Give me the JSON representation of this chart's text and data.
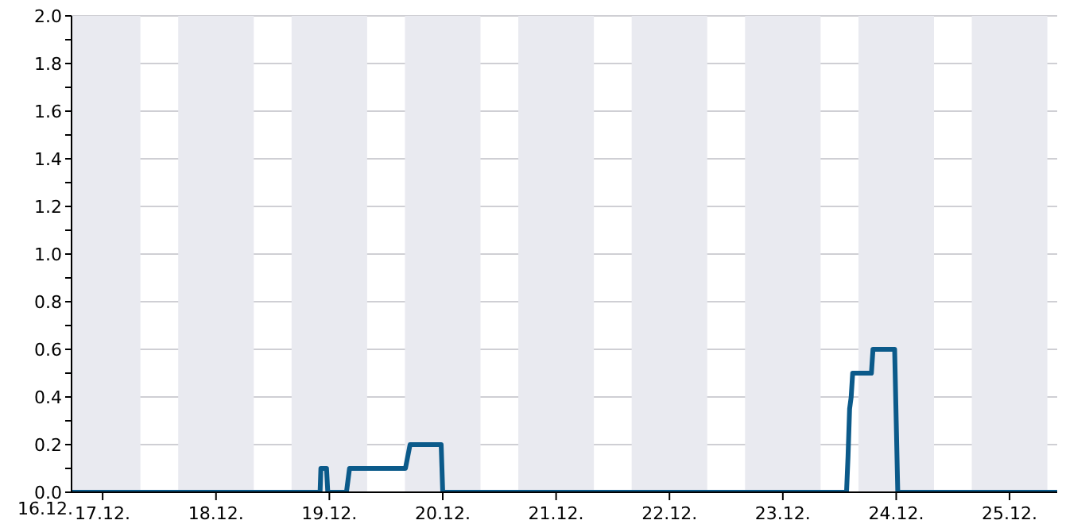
{
  "chart_data": {
    "type": "line",
    "x": [
      "--12-16T17:25",
      "--12-18T22:02",
      "--12-18T22:12",
      "--12-18T23:24",
      "--12-18T23:40",
      "--12-19T03:37",
      "--12-19T04:16",
      "--12-19T16:06",
      "--12-19T17:05",
      "--12-19T23:40",
      "--12-20T00:00",
      "--12-23T13:29",
      "--12-23T13:48",
      "--12-23T14:08",
      "--12-23T14:28",
      "--12-23T14:47",
      "--12-23T18:45",
      "--12-23T19:05",
      "--12-23T23:40",
      "--12-24T00:00",
      "--12-24T00:20",
      "--12-25T10:05"
    ],
    "series": [
      {
        "color": "#0b5a8a",
        "values": [
          0,
          0,
          0.1,
          0.1,
          0,
          0,
          0.1,
          0.1,
          0.2,
          0.2,
          0,
          0,
          0.15,
          0.35,
          0.4,
          0.5,
          0.5,
          0.6,
          0.6,
          0.3,
          0,
          0
        ]
      }
    ],
    "xlim": [
      "--12-16T17:25",
      "--12-25T10:05"
    ],
    "annotations": [
      "16.12."
    ],
    "xticks": [
      {
        "value": "--12-17",
        "label": "17.12."
      },
      {
        "value": "--12-18",
        "label": "18.12."
      },
      {
        "value": "--12-19",
        "label": "19.12."
      },
      {
        "value": "--12-20",
        "label": "20.12."
      },
      {
        "value": "--12-21",
        "label": "21.12."
      },
      {
        "value": "--12-22",
        "label": "22.12."
      },
      {
        "value": "--12-23",
        "label": "23.12."
      },
      {
        "value": "--12-24",
        "label": "24.12."
      },
      {
        "value": "--12-25",
        "label": "25.12."
      }
    ],
    "ylim": [
      0,
      2
    ],
    "yticks": [
      {
        "value": 0,
        "label": "0.0"
      },
      {
        "value": 0.1,
        "label": null
      },
      {
        "value": 0.2,
        "label": "0.2"
      },
      {
        "value": 0.3,
        "label": null
      },
      {
        "value": 0.4,
        "label": "0.4"
      },
      {
        "value": 0.5,
        "label": null
      },
      {
        "value": 0.6,
        "label": "0.6"
      },
      {
        "value": 0.7,
        "label": null
      },
      {
        "value": 0.8,
        "label": "0.8"
      },
      {
        "value": 0.9,
        "label": null
      },
      {
        "value": 1,
        "label": "1.0"
      },
      {
        "value": 1.1,
        "label": null
      },
      {
        "value": 1.2,
        "label": "1.2"
      },
      {
        "value": 1.3,
        "label": null
      },
      {
        "value": 1.4,
        "label": "1.4"
      },
      {
        "value": 1.5,
        "label": null
      },
      {
        "value": 1.6,
        "label": "1.6"
      },
      {
        "value": 1.7,
        "label": null
      },
      {
        "value": 1.8,
        "label": "1.8"
      },
      {
        "value": 1.9,
        "label": null
      },
      {
        "value": 2,
        "label": "2.0"
      }
    ],
    "bands": [
      {
        "axis": "x",
        "from": "--12-16T17:25",
        "to": "--12-17T08:00",
        "color": "#e9eaf0"
      },
      {
        "axis": "x",
        "from": "--12-17T16:00",
        "to": "--12-18T08:00",
        "color": "#e9eaf0"
      },
      {
        "axis": "x",
        "from": "--12-18T16:00",
        "to": "--12-19T08:00",
        "color": "#e9eaf0"
      },
      {
        "axis": "x",
        "from": "--12-19T16:00",
        "to": "--12-20T08:00",
        "color": "#e9eaf0"
      },
      {
        "axis": "x",
        "from": "--12-20T16:00",
        "to": "--12-21T08:00",
        "color": "#e9eaf0"
      },
      {
        "axis": "x",
        "from": "--12-21T16:00",
        "to": "--12-22T08:00",
        "color": "#e9eaf0"
      },
      {
        "axis": "x",
        "from": "--12-22T16:00",
        "to": "--12-23T08:00",
        "color": "#e9eaf0"
      },
      {
        "axis": "x",
        "from": "--12-23T16:00",
        "to": "--12-24T08:00",
        "color": "#e9eaf0"
      },
      {
        "axis": "x",
        "from": "--12-24T16:00",
        "to": "--12-25T08:00",
        "color": "#e9eaf0"
      }
    ],
    "grid": true,
    "marker": "none",
    "line_style": "solid"
  }
}
